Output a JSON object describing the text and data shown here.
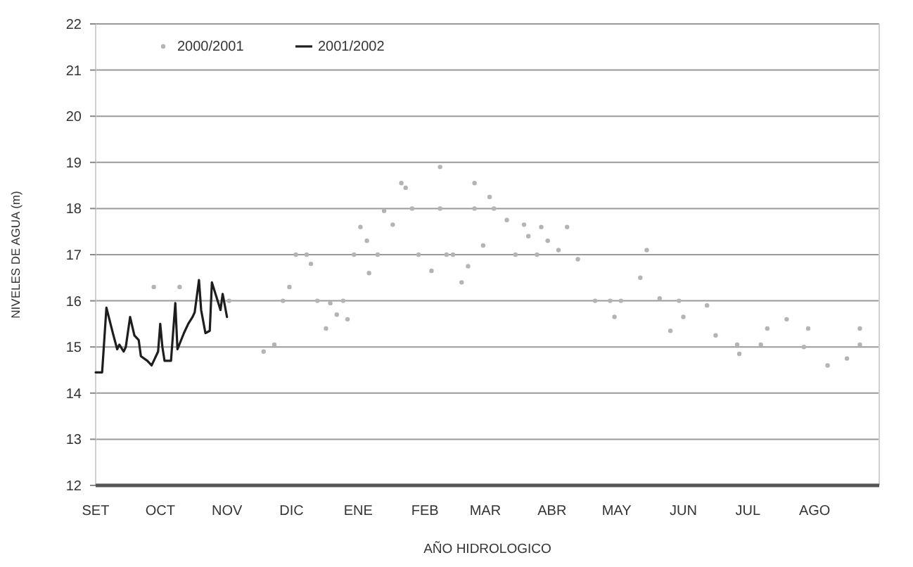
{
  "chart_data": {
    "type": "line",
    "xlabel": "AÑO HIDROLOGICO",
    "ylabel": "NIVELES DE AGUA (m)",
    "xlim": [
      "2001-09-01",
      "2002-08-31"
    ],
    "xticks": [
      {
        "value": "2001-09-01",
        "label": "SET"
      },
      {
        "value": "2001-10-01",
        "label": "OCT"
      },
      {
        "value": "2001-11-01",
        "label": "NOV"
      },
      {
        "value": "2001-12-01",
        "label": "DIC"
      },
      {
        "value": "2002-01-01",
        "label": "ENE"
      },
      {
        "value": "2002-02-01",
        "label": "FEB"
      },
      {
        "value": "2002-03-01",
        "label": "MAR"
      },
      {
        "value": "2002-04-01",
        "label": "ABR"
      },
      {
        "value": "2002-05-01",
        "label": "MAY"
      },
      {
        "value": "2002-06-01",
        "label": "JUN"
      },
      {
        "value": "2002-07-01",
        "label": "JUL"
      },
      {
        "value": "2002-08-01",
        "label": "AGO"
      }
    ],
    "ylim": [
      12,
      22
    ],
    "yticks": [
      12,
      13,
      14,
      15,
      16,
      17,
      18,
      19,
      20,
      21,
      22
    ],
    "grid": "y",
    "legend": "top left",
    "series": [
      {
        "name": "2000/2001",
        "type": "scatter",
        "marker": "circle",
        "color": "#b4b4b4",
        "x": [
          "2001-09-28",
          "2001-10-10",
          "2001-11-02",
          "2001-11-18",
          "2001-11-23",
          "2001-11-27",
          "2001-11-30",
          "2001-12-03",
          "2001-12-08",
          "2001-12-10",
          "2001-12-13",
          "2001-12-17",
          "2001-12-19",
          "2001-12-22",
          "2001-12-25",
          "2001-12-27",
          "2001-12-30",
          "2002-01-02",
          "2002-01-05",
          "2002-01-06",
          "2002-01-10",
          "2002-01-13",
          "2002-01-17",
          "2002-01-21",
          "2002-01-23",
          "2002-01-26",
          "2002-01-29",
          "2002-02-04",
          "2002-02-08",
          "2002-02-08",
          "2002-02-11",
          "2002-02-14",
          "2002-02-18",
          "2002-02-21",
          "2002-02-24",
          "2002-02-24",
          "2002-02-28",
          "2002-03-03",
          "2002-03-05",
          "2002-03-11",
          "2002-03-15",
          "2002-03-19",
          "2002-03-21",
          "2002-03-25",
          "2002-03-27",
          "2002-03-30",
          "2002-04-04",
          "2002-04-08",
          "2002-04-13",
          "2002-04-21",
          "2002-04-28",
          "2002-04-30",
          "2002-05-03",
          "2002-05-12",
          "2002-05-15",
          "2002-05-21",
          "2002-05-26",
          "2002-05-30",
          "2002-06-01",
          "2002-06-12",
          "2002-06-16",
          "2002-06-26",
          "2002-06-27",
          "2002-07-07",
          "2002-07-10",
          "2002-07-19",
          "2002-07-27",
          "2002-07-29",
          "2002-08-07",
          "2002-08-16",
          "2002-08-22",
          "2002-08-22"
        ],
        "values": [
          16.3,
          16.3,
          16.0,
          14.9,
          15.05,
          16.0,
          16.3,
          17.0,
          17.0,
          16.8,
          16.0,
          15.4,
          15.95,
          15.7,
          16.0,
          15.6,
          17.0,
          17.6,
          17.3,
          16.6,
          17.0,
          17.95,
          17.65,
          18.55,
          18.45,
          18.0,
          17.0,
          16.65,
          18.0,
          18.9,
          17.0,
          17.0,
          16.4,
          16.75,
          18.0,
          18.55,
          17.2,
          18.25,
          18.0,
          17.75,
          17.0,
          17.65,
          17.4,
          17.0,
          17.6,
          17.3,
          17.1,
          17.6,
          16.9,
          16.0,
          16.0,
          15.65,
          16.0,
          16.5,
          17.1,
          16.05,
          15.35,
          16.0,
          15.65,
          15.9,
          15.25,
          15.05,
          14.85,
          15.05,
          15.4,
          15.6,
          15.0,
          15.4,
          14.6,
          14.75,
          15.05,
          15.4
        ]
      },
      {
        "name": "2001/2002",
        "color": "#1e1e1e",
        "x": [
          "2001-09-01",
          "2001-09-04",
          "2001-09-06",
          "2001-09-09",
          "2001-09-11",
          "2001-09-12",
          "2001-09-14",
          "2001-09-15",
          "2001-09-17",
          "2001-09-19",
          "2001-09-21",
          "2001-09-22",
          "2001-09-25",
          "2001-09-27",
          "2001-09-30",
          "2001-10-01",
          "2001-10-02",
          "2001-10-03",
          "2001-10-06",
          "2001-10-08",
          "2001-10-09",
          "2001-10-12",
          "2001-10-14",
          "2001-10-16",
          "2001-10-17",
          "2001-10-19",
          "2001-10-20",
          "2001-10-22",
          "2001-10-24",
          "2001-10-25",
          "2001-10-27",
          "2001-10-29",
          "2001-10-30",
          "2001-11-01"
        ],
        "values": [
          14.45,
          14.45,
          15.85,
          15.3,
          14.95,
          15.05,
          14.9,
          15.0,
          15.65,
          15.25,
          15.15,
          14.8,
          14.7,
          14.6,
          14.9,
          15.5,
          15.0,
          14.7,
          14.7,
          15.95,
          14.95,
          15.3,
          15.5,
          15.65,
          15.75,
          16.45,
          15.8,
          15.3,
          15.35,
          16.4,
          16.1,
          15.8,
          16.15,
          15.65
        ]
      }
    ]
  }
}
